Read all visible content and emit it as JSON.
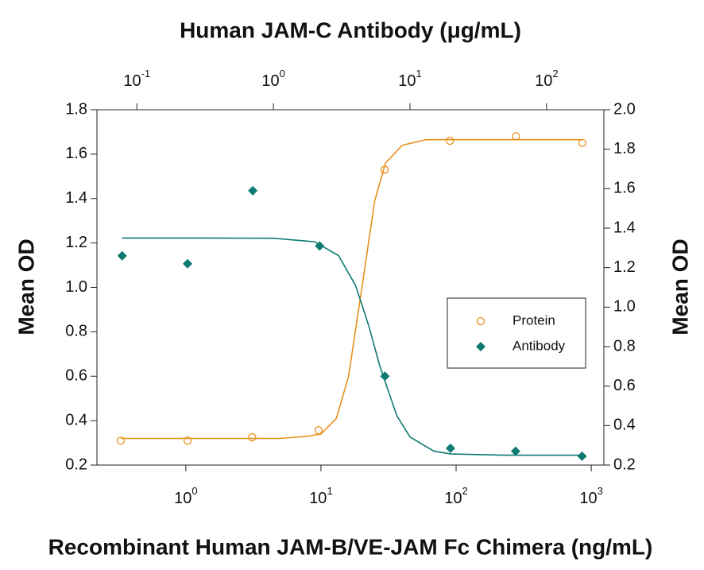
{
  "chart_data": {
    "type": "scatter",
    "title": "Human JAM-C Antibody (μg/mL)",
    "xlabel": "Recombinant Human JAM-B/VE-JAM Fc Chimera (ng/mL)",
    "ylabel": "Mean OD",
    "y2label": "Mean OD",
    "xscale": "log",
    "xlim": [
      0.22,
      1240
    ],
    "xticks": [
      {
        "value": 1,
        "label": "10",
        "sup": "0"
      },
      {
        "value": 10,
        "label": "10",
        "sup": "1"
      },
      {
        "value": 100,
        "label": "10",
        "sup": "2"
      },
      {
        "value": 1000,
        "label": "10",
        "sup": "3"
      }
    ],
    "x2lim": [
      0.051,
      263
    ],
    "x2ticks": [
      {
        "value": 0.1,
        "label": "10",
        "sup": "-1"
      },
      {
        "value": 1,
        "label": "10",
        "sup": "0"
      },
      {
        "value": 10,
        "label": "10",
        "sup": "1"
      },
      {
        "value": 100,
        "label": "10",
        "sup": "2"
      }
    ],
    "ylim": [
      0.2,
      1.8
    ],
    "yticks": [
      0.2,
      0.4,
      0.6,
      0.8,
      {
        "value": 1,
        "label": "1.0"
      },
      1.2,
      1.4,
      1.6,
      1.8
    ],
    "y2lim": [
      0.2,
      2.0
    ],
    "y2ticks": [
      0.2,
      0.4,
      0.6,
      0.8,
      {
        "value": 1,
        "label": "1.0"
      },
      1.2,
      1.4,
      1.6,
      1.8,
      {
        "value": 2,
        "label": "2.0"
      }
    ],
    "legend": "right",
    "series": [
      {
        "name": "Protein",
        "color": "#e8901a",
        "marker": "open-circle",
        "x": [
          0.33,
          1.03,
          3.1,
          9.6,
          29.6,
          90,
          277,
          860
        ],
        "values": [
          0.31,
          0.31,
          0.325,
          0.357,
          1.53,
          1.66,
          1.68,
          1.65
        ],
        "fit": {
          "x": [
            0.33,
            1,
            5,
            8,
            10,
            13,
            16,
            20,
            25,
            30,
            40,
            60,
            100,
            860
          ],
          "values": [
            0.32,
            0.32,
            0.32,
            0.33,
            0.34,
            0.41,
            0.6,
            0.99,
            1.39,
            1.56,
            1.64,
            1.665,
            1.665,
            1.665
          ]
        }
      },
      {
        "name": "Antibody",
        "color": "#0e7a72",
        "marker": "diamond",
        "xaxis": "x2",
        "axis": "y2",
        "x": [
          0.078,
          0.235,
          0.706,
          2.18,
          6.55,
          19.8,
          59.4,
          182
        ],
        "values": [
          1.26,
          1.22,
          1.59,
          1.31,
          0.65,
          0.285,
          0.27,
          0.245
        ],
        "fit": {
          "x": [
            0.078,
            0.3,
            1,
            2,
            3,
            4,
            5,
            6,
            8,
            10,
            15,
            20,
            50,
            182
          ],
          "values": [
            1.35,
            1.35,
            1.349,
            1.331,
            1.261,
            1.109,
            0.904,
            0.705,
            0.451,
            0.342,
            0.27,
            0.256,
            0.25,
            0.25
          ]
        }
      }
    ]
  }
}
